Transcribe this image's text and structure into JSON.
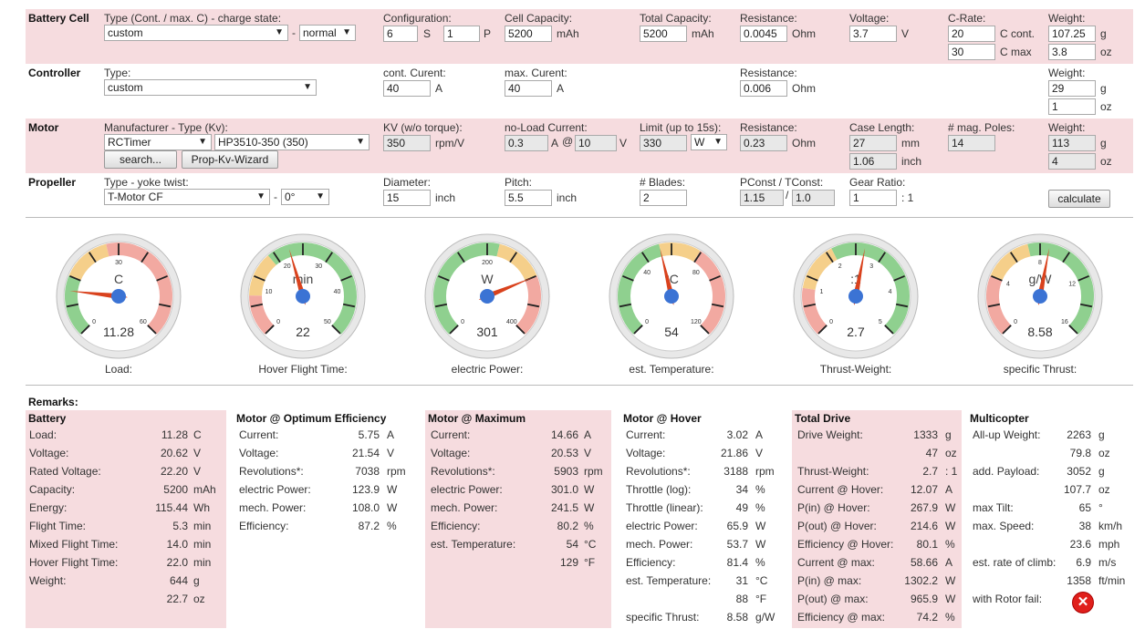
{
  "battery_cell": {
    "title": "Battery Cell",
    "type_label": "Type (Cont. / max. C) - charge state:",
    "type_value": "custom",
    "charge_value": "normal",
    "config_label": "Configuration:",
    "config_s": "6",
    "s_unit": "S",
    "config_p": "1",
    "p_unit": "P",
    "capacity_label": "Cell Capacity:",
    "capacity": "5200",
    "capacity_unit": "mAh",
    "total_label": "Total Capacity:",
    "total": "5200",
    "total_unit": "mAh",
    "res_label": "Resistance:",
    "res": "0.0045",
    "res_unit": "Ohm",
    "volt_label": "Voltage:",
    "volt": "3.7",
    "volt_unit": "V",
    "crate_label": "C-Rate:",
    "c_cont": "20",
    "c_cont_unit": "C cont.",
    "c_max": "30",
    "c_max_unit": "C max",
    "weight_label": "Weight:",
    "weight_g": "107.25",
    "g": "g",
    "weight_oz": "3.8",
    "oz": "oz"
  },
  "controller": {
    "title": "Controller",
    "type_label": "Type:",
    "type_value": "custom",
    "cont_label": "cont. Curent:",
    "cont": "40",
    "cont_unit": "A",
    "max_label": "max. Curent:",
    "max": "40",
    "max_unit": "A",
    "res_label": "Resistance:",
    "res": "0.006",
    "res_unit": "Ohm",
    "weight_label": "Weight:",
    "weight_g": "29",
    "g": "g",
    "weight_oz": "1",
    "oz": "oz"
  },
  "motor": {
    "title": "Motor",
    "type_label": "Manufacturer - Type (Kv):",
    "manufacturer": "RCTimer",
    "model": "HP3510-350 (350)",
    "search_btn": "search...",
    "wizard_btn": "Prop-Kv-Wizard",
    "kv_label": "KV (w/o torque):",
    "kv": "350",
    "kv_unit": "rpm/V",
    "noload_label": "no-Load Current:",
    "noload_a": "0.3",
    "noload_a_unit": "A",
    "at": "@",
    "noload_v": "10",
    "noload_v_unit": "V",
    "limit_label": "Limit (up to 15s):",
    "limit": "330",
    "limit_unit": "W",
    "res_label": "Resistance:",
    "res": "0.23",
    "res_unit": "Ohm",
    "case_label": "Case Length:",
    "case_mm": "27",
    "mm": "mm",
    "case_inch": "1.06",
    "inch": "inch",
    "poles_label": "# mag. Poles:",
    "poles": "14",
    "weight_label": "Weight:",
    "weight_g": "113",
    "g": "g",
    "weight_oz": "4",
    "oz": "oz"
  },
  "propeller": {
    "title": "Propeller",
    "type_label": "Type - yoke twist:",
    "type_value": "T-Motor CF",
    "twist": "0°",
    "dia_label": "Diameter:",
    "dia": "15",
    "dia_unit": "inch",
    "pitch_label": "Pitch:",
    "pitch": "5.5",
    "pitch_unit": "inch",
    "blades_label": "# Blades:",
    "blades": "2",
    "pconst_label": "PConst / TConst:",
    "pconst": "1.15",
    "slash": "/",
    "tconst": "1.0",
    "gear_label": "Gear Ratio:",
    "gear": "1",
    "gear_unit": ": 1",
    "calc_btn": "calculate"
  },
  "gauges": [
    {
      "unit": "C",
      "value": "11.28",
      "caption": "Load:",
      "ticks": [
        "0",
        "30",
        "60"
      ],
      "frac": 0.19
    },
    {
      "unit": "min",
      "value": "22",
      "caption": "Hover Flight Time:",
      "ticks": [
        "0",
        "10",
        "20",
        "30",
        "40",
        "50"
      ],
      "frac": 0.44
    },
    {
      "unit": "W",
      "value": "301",
      "caption": "electric Power:",
      "ticks": [
        "0",
        "200",
        "400"
      ],
      "frac": 0.75
    },
    {
      "unit": "°C",
      "value": "54",
      "caption": "est. Temperature:",
      "ticks": [
        "0",
        "40",
        "80",
        "120"
      ],
      "frac": 0.45
    },
    {
      "unit": ":1",
      "value": "2.7",
      "caption": "Thrust-Weight:",
      "ticks": [
        "0",
        "1",
        "2",
        "3",
        "4",
        "5"
      ],
      "frac": 0.54
    },
    {
      "unit": "g/W",
      "value": "8.58",
      "caption": "specific Thrust:",
      "ticks": [
        "0",
        "4",
        "8",
        "12",
        "16"
      ],
      "frac": 0.54
    }
  ],
  "remarks_label": "Remarks:",
  "battery_stats": {
    "title": "Battery",
    "rows": [
      {
        "k": "Load:",
        "v": "11.28",
        "u": "C"
      },
      {
        "k": "Voltage:",
        "v": "20.62",
        "u": "V"
      },
      {
        "k": "Rated Voltage:",
        "v": "22.20",
        "u": "V"
      },
      {
        "k": "Capacity:",
        "v": "5200",
        "u": "mAh"
      },
      {
        "k": "Energy:",
        "v": "115.44",
        "u": "Wh"
      },
      {
        "k": "Flight Time:",
        "v": "5.3",
        "u": "min"
      },
      {
        "k": "Mixed Flight Time:",
        "v": "14.0",
        "u": "min"
      },
      {
        "k": "Hover Flight Time:",
        "v": "22.0",
        "u": "min"
      },
      {
        "k": "Weight:",
        "v": "644",
        "u": "g"
      },
      {
        "k": "",
        "v": "22.7",
        "u": "oz"
      }
    ]
  },
  "motor_opt": {
    "title": "Motor @ Optimum Efficiency",
    "rows": [
      {
        "k": "Current:",
        "v": "5.75",
        "u": "A"
      },
      {
        "k": "Voltage:",
        "v": "21.54",
        "u": "V"
      },
      {
        "k": "Revolutions*:",
        "v": "7038",
        "u": "rpm"
      },
      {
        "k": "electric Power:",
        "v": "123.9",
        "u": "W"
      },
      {
        "k": "mech. Power:",
        "v": "108.0",
        "u": "W"
      },
      {
        "k": "Efficiency:",
        "v": "87.2",
        "u": "%"
      }
    ]
  },
  "motor_max": {
    "title": "Motor @ Maximum",
    "rows": [
      {
        "k": "Current:",
        "v": "14.66",
        "u": "A"
      },
      {
        "k": "Voltage:",
        "v": "20.53",
        "u": "V"
      },
      {
        "k": "Revolutions*:",
        "v": "5903",
        "u": "rpm"
      },
      {
        "k": "electric Power:",
        "v": "301.0",
        "u": "W"
      },
      {
        "k": "mech. Power:",
        "v": "241.5",
        "u": "W"
      },
      {
        "k": "Efficiency:",
        "v": "80.2",
        "u": "%"
      },
      {
        "k": "est. Temperature:",
        "v": "54",
        "u": "°C"
      },
      {
        "k": "",
        "v": "129",
        "u": "°F"
      }
    ]
  },
  "motor_hover": {
    "title": "Motor @ Hover",
    "rows": [
      {
        "k": "Current:",
        "v": "3.02",
        "u": "A"
      },
      {
        "k": "Voltage:",
        "v": "21.86",
        "u": "V"
      },
      {
        "k": "Revolutions*:",
        "v": "3188",
        "u": "rpm"
      },
      {
        "k": "Throttle (log):",
        "v": "34",
        "u": "%"
      },
      {
        "k": "Throttle (linear):",
        "v": "49",
        "u": "%"
      },
      {
        "k": "electric Power:",
        "v": "65.9",
        "u": "W"
      },
      {
        "k": "mech. Power:",
        "v": "53.7",
        "u": "W"
      },
      {
        "k": "Efficiency:",
        "v": "81.4",
        "u": "%"
      },
      {
        "k": "est. Temperature:",
        "v": "31",
        "u": "°C"
      },
      {
        "k": "",
        "v": "88",
        "u": "°F"
      },
      {
        "k": "specific Thrust:",
        "v": "8.58",
        "u": "g/W"
      }
    ]
  },
  "total_drive": {
    "title": "Total Drive",
    "rows": [
      {
        "k": "Drive Weight:",
        "v": "1333",
        "u": "g"
      },
      {
        "k": "",
        "v": "47",
        "u": "oz"
      },
      {
        "k": "Thrust-Weight:",
        "v": "2.7",
        "u": ": 1"
      },
      {
        "k": "Current @ Hover:",
        "v": "12.07",
        "u": "A"
      },
      {
        "k": "P(in) @ Hover:",
        "v": "267.9",
        "u": "W"
      },
      {
        "k": "P(out) @ Hover:",
        "v": "214.6",
        "u": "W"
      },
      {
        "k": "Efficiency @ Hover:",
        "v": "80.1",
        "u": "%"
      },
      {
        "k": "Current @ max:",
        "v": "58.66",
        "u": "A"
      },
      {
        "k": "P(in) @ max:",
        "v": "1302.2",
        "u": "W"
      },
      {
        "k": "P(out) @ max:",
        "v": "965.9",
        "u": "W"
      },
      {
        "k": "Efficiency @ max:",
        "v": "74.2",
        "u": "%"
      }
    ]
  },
  "multicopter": {
    "title": "Multicopter",
    "rows": [
      {
        "k": "All-up Weight:",
        "v": "2263",
        "u": "g"
      },
      {
        "k": "",
        "v": "79.8",
        "u": "oz"
      },
      {
        "k": "add. Payload:",
        "v": "3052",
        "u": "g"
      },
      {
        "k": "",
        "v": "107.7",
        "u": "oz"
      },
      {
        "k": "max Tilt:",
        "v": "65",
        "u": "°"
      },
      {
        "k": "max. Speed:",
        "v": "38",
        "u": "km/h"
      },
      {
        "k": "",
        "v": "23.6",
        "u": "mph"
      },
      {
        "k": "est. rate of climb:",
        "v": "6.9",
        "u": "m/s"
      },
      {
        "k": "",
        "v": "1358",
        "u": "ft/min"
      },
      {
        "k": "with Rotor fail:",
        "v": "",
        "u": ""
      }
    ],
    "fail_icon": "red-x-icon"
  }
}
